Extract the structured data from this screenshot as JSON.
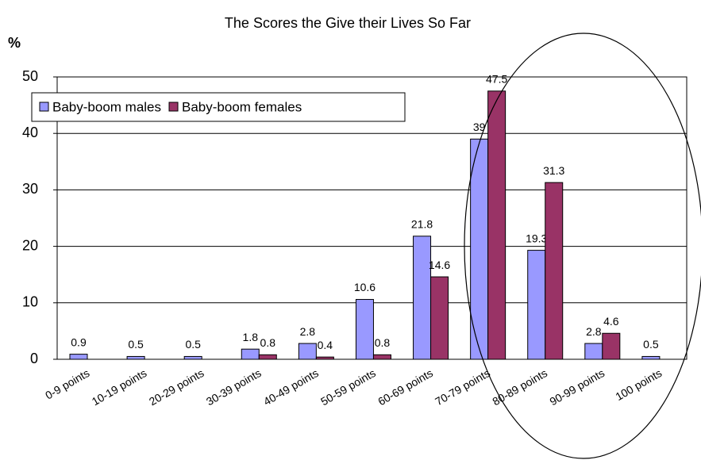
{
  "chart_data": {
    "type": "bar",
    "title": "The Scores the Give their Lives So Far",
    "y_label": "%",
    "categories": [
      "0-9 points",
      "10-19 points",
      "20-29 points",
      "30-39 points",
      "40-49 points",
      "50-59 points",
      "60-69 points",
      "70-79 points",
      "80-89 points",
      "90-99 points",
      "100 points"
    ],
    "series": [
      {
        "name": "Baby-boom males",
        "color": "#9999ff",
        "values": [
          0.9,
          0.5,
          0.5,
          1.8,
          2.8,
          10.6,
          21.8,
          39,
          19.3,
          2.8,
          0.5
        ]
      },
      {
        "name": "Baby-boom females",
        "color": "#993366",
        "values": [
          null,
          null,
          null,
          0.8,
          0.4,
          0.8,
          14.6,
          47.5,
          31.3,
          4.6,
          null
        ]
      }
    ],
    "ylim": [
      0,
      50
    ],
    "yticks": [
      0,
      10,
      20,
      30,
      40,
      50
    ],
    "grid": true,
    "legend": "top-left"
  }
}
